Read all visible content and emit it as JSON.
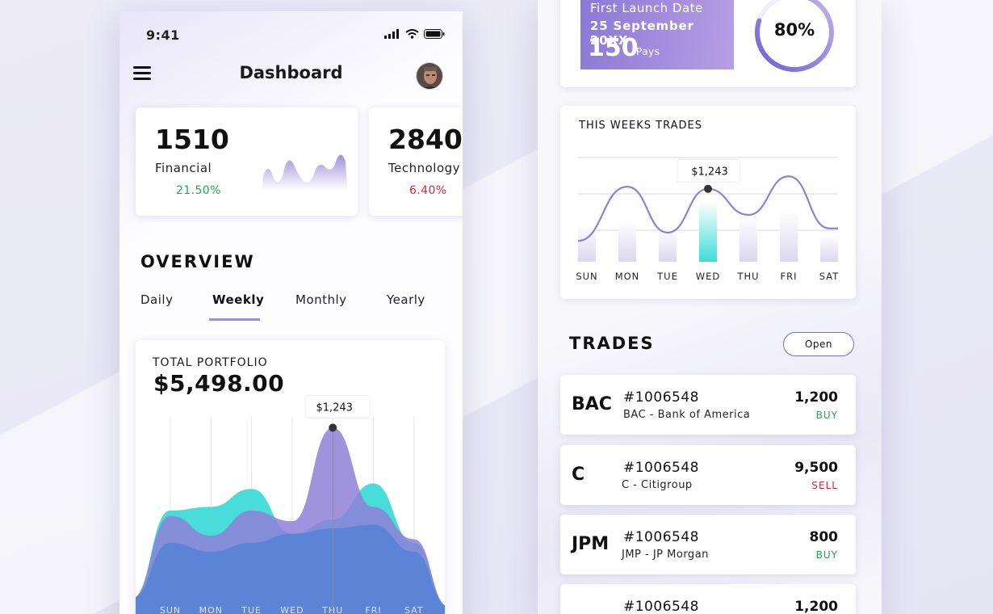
{
  "status_bar": {
    "time": "9:41"
  },
  "header": {
    "title": "Dashboard"
  },
  "stat_cards": [
    {
      "value": "1510",
      "label": "Financial",
      "change": "21.50%",
      "trend": "up"
    },
    {
      "value": "2840",
      "label": "Technology",
      "change": "6.40%",
      "trend": "down"
    }
  ],
  "overview": {
    "title": "OVERVIEW",
    "tabs": [
      "Daily",
      "Weekly",
      "Monthly",
      "Yearly"
    ],
    "active_tab": "Weekly"
  },
  "portfolio": {
    "label": "TOTAL PORTFOLIO",
    "value": "$5,498.00",
    "tooltip": "$1,243"
  },
  "launch": {
    "label": "First Launch Date",
    "date": "25 September 20XX",
    "days": "150",
    "days_unit": "Pays",
    "progress_text": "80%",
    "progress": 0.8
  },
  "week_trades": {
    "title": "THIS WEEKS TRADES",
    "tooltip": "$1,243"
  },
  "trades": {
    "title": "TRADES",
    "open_label": "Open",
    "rows": [
      {
        "ticker": "BAC",
        "id": "#1006548",
        "name": "BAC - Bank of America",
        "qty": "1,200",
        "side": "BUY"
      },
      {
        "ticker": "C",
        "id": "#1006548",
        "name": "C - Citigroup",
        "qty": "9,500",
        "side": "SELL"
      },
      {
        "ticker": "JPM",
        "id": "#1006548",
        "name": "JMP - JP Morgan",
        "qty": "800",
        "side": "BUY"
      },
      {
        "ticker": "",
        "id": "#1006548",
        "name": "",
        "qty": "1,200",
        "side": ""
      }
    ]
  },
  "colors": {
    "accent": "#8f80d8",
    "teal": "#3edbd6",
    "blue_area": "#5b84d6",
    "buy": "#1ea84b",
    "sell": "#d4283c"
  },
  "chart_data": [
    {
      "type": "area",
      "title": "TOTAL PORTFOLIO",
      "categories": [
        "SUN",
        "MON",
        "TUE",
        "WED",
        "THU",
        "FRI",
        "SAT"
      ],
      "series": [
        {
          "values": [
            58,
            60,
            70,
            45,
            53,
            73,
            40
          ]
        },
        {
          "values": [
            55,
            44,
            58,
            52,
            104,
            60,
            42
          ]
        },
        {
          "values": [
            40,
            35,
            40,
            45,
            48,
            50,
            35
          ]
        }
      ],
      "highlight": {
        "category": "THU",
        "label": "$1,243"
      },
      "grid": true
    },
    {
      "type": "line",
      "title": "THIS WEEKS TRADES",
      "categories": [
        "SUN",
        "MON",
        "TUE",
        "WED",
        "THU",
        "FRI",
        "SAT"
      ],
      "line_values": [
        20,
        72,
        28,
        70,
        45,
        82,
        32
      ],
      "bar_values": [
        36,
        40,
        32,
        58,
        44,
        50,
        26
      ],
      "highlight": {
        "category": "WED",
        "label": "$1,243"
      },
      "grid": true
    }
  ]
}
